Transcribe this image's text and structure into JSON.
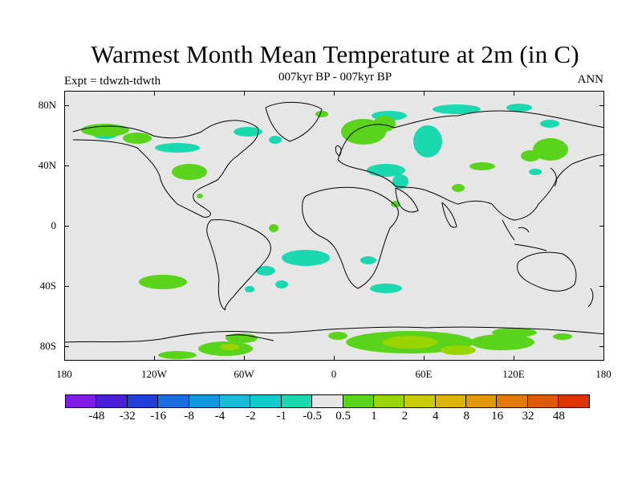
{
  "header": {
    "title": "Warmest Month Mean Temperature at 2m (in C)",
    "subtitle": "007kyr BP - 007kyr BP",
    "expt": "Expt = tdwzh-tdwth",
    "period": "ANN"
  },
  "map": {
    "lat_labels": [
      "80N",
      "40N",
      "0",
      "40S",
      "80S"
    ],
    "lon_labels": [
      "180",
      "120W",
      "60W",
      "0",
      "60E",
      "120E",
      "180"
    ],
    "background_color": "#e6e6e6",
    "coastline_color": "#000000"
  },
  "colorbar": {
    "colors": [
      "#7f1ce6",
      "#4a1fd9",
      "#2040d9",
      "#1a6fe0",
      "#1199dd",
      "#18bcd8",
      "#10cccc",
      "#1ad8b0",
      "#e6e6e6",
      "#5ad41a",
      "#99d400",
      "#c8cc00",
      "#dcb400",
      "#e09a00",
      "#e07a00",
      "#e05a00",
      "#dc3300"
    ],
    "labels": [
      "-48",
      "-32",
      "-16",
      "-8",
      "-4",
      "-2",
      "-1",
      "-0.5",
      "0.5",
      "1",
      "2",
      "4",
      "8",
      "16",
      "32",
      "48"
    ]
  },
  "legend_colors": {
    "cool_anomaly": "#1ad8b0",
    "warm_anomaly_1": "#5ad41a",
    "warm_anomaly_2": "#99d400"
  }
}
